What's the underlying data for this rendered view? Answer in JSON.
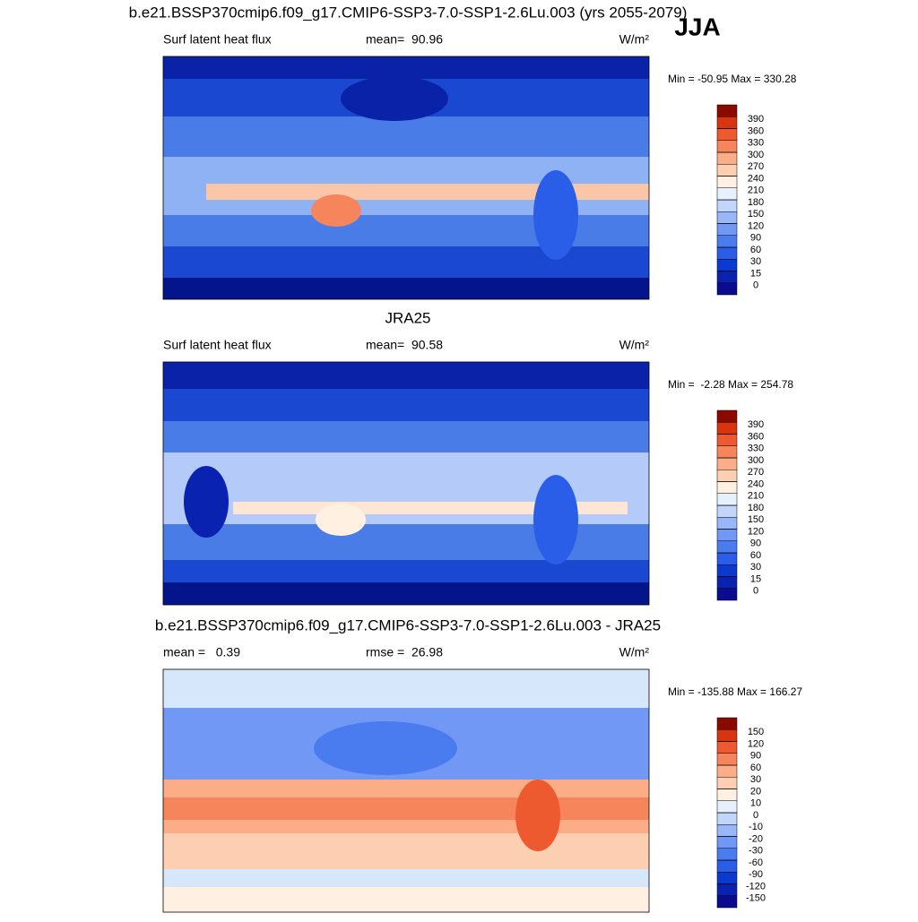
{
  "chart_data": [
    {
      "type": "contour-map",
      "title": "b.e21.BSSP370cmip6.f09_g17.CMIP6-SSP3-7.0-SSP1-2.6Lu.003 (yrs 2055-2079)",
      "annotation": "JJA",
      "left_label": "Surf latent heat flux",
      "center_label": "mean=  90.96",
      "right_label": "W/m²",
      "range_label": "Min = -50.95 Max = 330.28",
      "levels": [
        0,
        15,
        30,
        60,
        90,
        120,
        150,
        180,
        210,
        240,
        270,
        300,
        330,
        360,
        390
      ],
      "colors": [
        "#0b0b8f",
        "#0a22b0",
        "#0b3ad0",
        "#2a5ee8",
        "#4a7cf0",
        "#7098f4",
        "#98b6f8",
        "#c2d6fb",
        "#e6f0ff",
        "#fff0e2",
        "#fdcfb2",
        "#fbad88",
        "#f7855c",
        "#ee5a30",
        "#d83410",
        "#8b0a00"
      ]
    },
    {
      "type": "contour-map",
      "title": "JRA25",
      "left_label": "Surf latent heat flux",
      "center_label": "mean=  90.58",
      "right_label": "W/m²",
      "range_label": "Min =  -2.28 Max = 254.78",
      "levels": [
        0,
        15,
        30,
        60,
        90,
        120,
        150,
        180,
        210,
        240,
        270,
        300,
        330,
        360,
        390
      ],
      "colors": [
        "#0b0b8f",
        "#0a22b0",
        "#0b3ad0",
        "#2a5ee8",
        "#4a7cf0",
        "#7098f4",
        "#98b6f8",
        "#c2d6fb",
        "#e6f0ff",
        "#fff0e2",
        "#fdcfb2",
        "#fbad88",
        "#f7855c",
        "#ee5a30",
        "#d83410",
        "#8b0a00"
      ]
    },
    {
      "type": "contour-map",
      "title": "b.e21.BSSP370cmip6.f09_g17.CMIP6-SSP3-7.0-SSP1-2.6Lu.003 - JRA25",
      "left_label": "mean =   0.39",
      "center_label": "rmse =  26.98",
      "right_label": "W/m²",
      "range_label": "Min = -135.88 Max = 166.27",
      "levels": [
        -150,
        -120,
        -90,
        -60,
        -30,
        -20,
        -10,
        0,
        10,
        20,
        30,
        60,
        90,
        120,
        150
      ],
      "colors": [
        "#0b0b8f",
        "#0a22b0",
        "#0b3ad0",
        "#2a5ee8",
        "#4a7cf0",
        "#7098f4",
        "#98b6f8",
        "#c2d6fb",
        "#e6f0ff",
        "#fff0e2",
        "#fdcfb2",
        "#fbad88",
        "#f7855c",
        "#ee5a30",
        "#d83410",
        "#8b0a00"
      ]
    }
  ]
}
